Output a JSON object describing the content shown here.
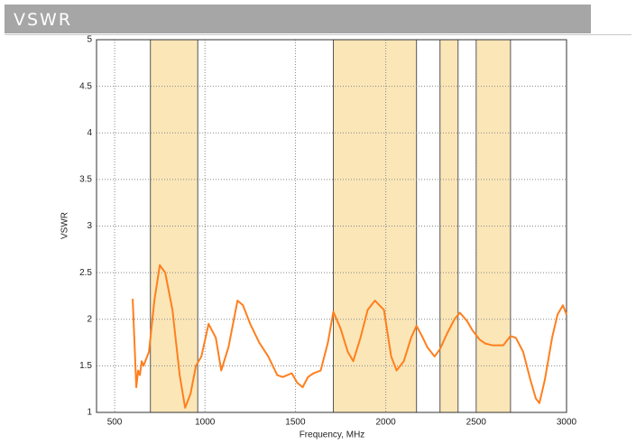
{
  "header": {
    "title": "VSWR"
  },
  "chart_data": {
    "type": "line",
    "x_label": "Frequency, MHz",
    "y_label": "VSWR",
    "xlim": [
      400,
      3000
    ],
    "ylim": [
      1,
      5
    ],
    "xticks": [
      500,
      1000,
      1500,
      2000,
      2500,
      3000
    ],
    "yticks": [
      1,
      1.5,
      2,
      2.5,
      3,
      3.5,
      4,
      4.5,
      5
    ],
    "grid": true,
    "bands": [
      [
        698,
        960
      ],
      [
        1710,
        2170
      ],
      [
        2300,
        2400
      ],
      [
        2500,
        2690
      ]
    ],
    "band_color": "#fbe6b8",
    "series": [
      {
        "color": "#ff7f1e",
        "x": [
          600,
          610,
          620,
          630,
          640,
          650,
          660,
          690,
          720,
          750,
          780,
          820,
          860,
          890,
          920,
          950,
          980,
          1020,
          1060,
          1090,
          1130,
          1180,
          1210,
          1250,
          1300,
          1350,
          1400,
          1430,
          1480,
          1510,
          1540,
          1570,
          1600,
          1640,
          1680,
          1710,
          1750,
          1790,
          1820,
          1860,
          1900,
          1940,
          1990,
          2030,
          2060,
          2100,
          2140,
          2170,
          2200,
          2230,
          2270,
          2300,
          2340,
          2380,
          2410,
          2450,
          2480,
          2520,
          2550,
          2590,
          2620,
          2650,
          2690,
          2720,
          2760,
          2800,
          2830,
          2850,
          2880,
          2920,
          2950,
          2980,
          3000
        ],
        "values": [
          2.22,
          1.75,
          1.27,
          1.45,
          1.4,
          1.55,
          1.5,
          1.65,
          2.2,
          2.58,
          2.5,
          2.1,
          1.4,
          1.05,
          1.2,
          1.5,
          1.6,
          1.95,
          1.8,
          1.45,
          1.7,
          2.2,
          2.15,
          1.95,
          1.75,
          1.6,
          1.4,
          1.38,
          1.42,
          1.32,
          1.27,
          1.38,
          1.42,
          1.45,
          1.75,
          2.08,
          1.9,
          1.65,
          1.55,
          1.8,
          2.1,
          2.2,
          2.1,
          1.6,
          1.45,
          1.55,
          1.8,
          1.93,
          1.82,
          1.7,
          1.6,
          1.68,
          1.85,
          2.0,
          2.07,
          1.98,
          1.88,
          1.78,
          1.74,
          1.72,
          1.72,
          1.72,
          1.82,
          1.8,
          1.65,
          1.35,
          1.15,
          1.1,
          1.35,
          1.8,
          2.05,
          2.15,
          2.05
        ]
      }
    ]
  }
}
